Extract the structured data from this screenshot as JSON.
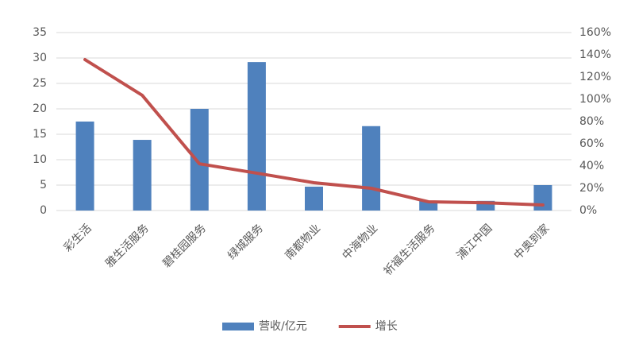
{
  "chart_data": {
    "type": "bar-line",
    "categories": [
      "彩生活",
      "雅生活服务",
      "碧桂园服务",
      "绿城服务",
      "南都物业",
      "中海物业",
      "祈福生活服务",
      "浦江中国",
      "中奥到家"
    ],
    "series": [
      {
        "name": "营收/亿元",
        "type": "bar",
        "color": "#4f81bd",
        "values": [
          17.5,
          13.9,
          20,
          29.2,
          4.7,
          16.6,
          1.9,
          1.9,
          5.0
        ]
      },
      {
        "name": "增长",
        "type": "line",
        "axis": "y2",
        "color": "#c0504d",
        "values": [
          135.7,
          103.6,
          42,
          33.6,
          25,
          20,
          7.9,
          7,
          5
        ]
      }
    ],
    "ylim": [
      0,
      35
    ],
    "yticks": [
      0,
      5,
      10,
      15,
      20,
      25,
      30,
      35
    ],
    "y2lim": [
      0,
      160
    ],
    "y2ticks": [
      {
        "value": 0,
        "label": "0%"
      },
      {
        "value": 20,
        "label": "20%"
      },
      {
        "value": 40,
        "label": "40%"
      },
      {
        "value": 60,
        "label": "60%"
      },
      {
        "value": 80,
        "label": "80%"
      },
      {
        "value": 100,
        "label": "100%"
      },
      {
        "value": 120,
        "label": "120%"
      },
      {
        "value": 140,
        "label": "140%"
      },
      {
        "value": 160,
        "label": "160%"
      }
    ],
    "grid": true,
    "legend": "bottom"
  }
}
